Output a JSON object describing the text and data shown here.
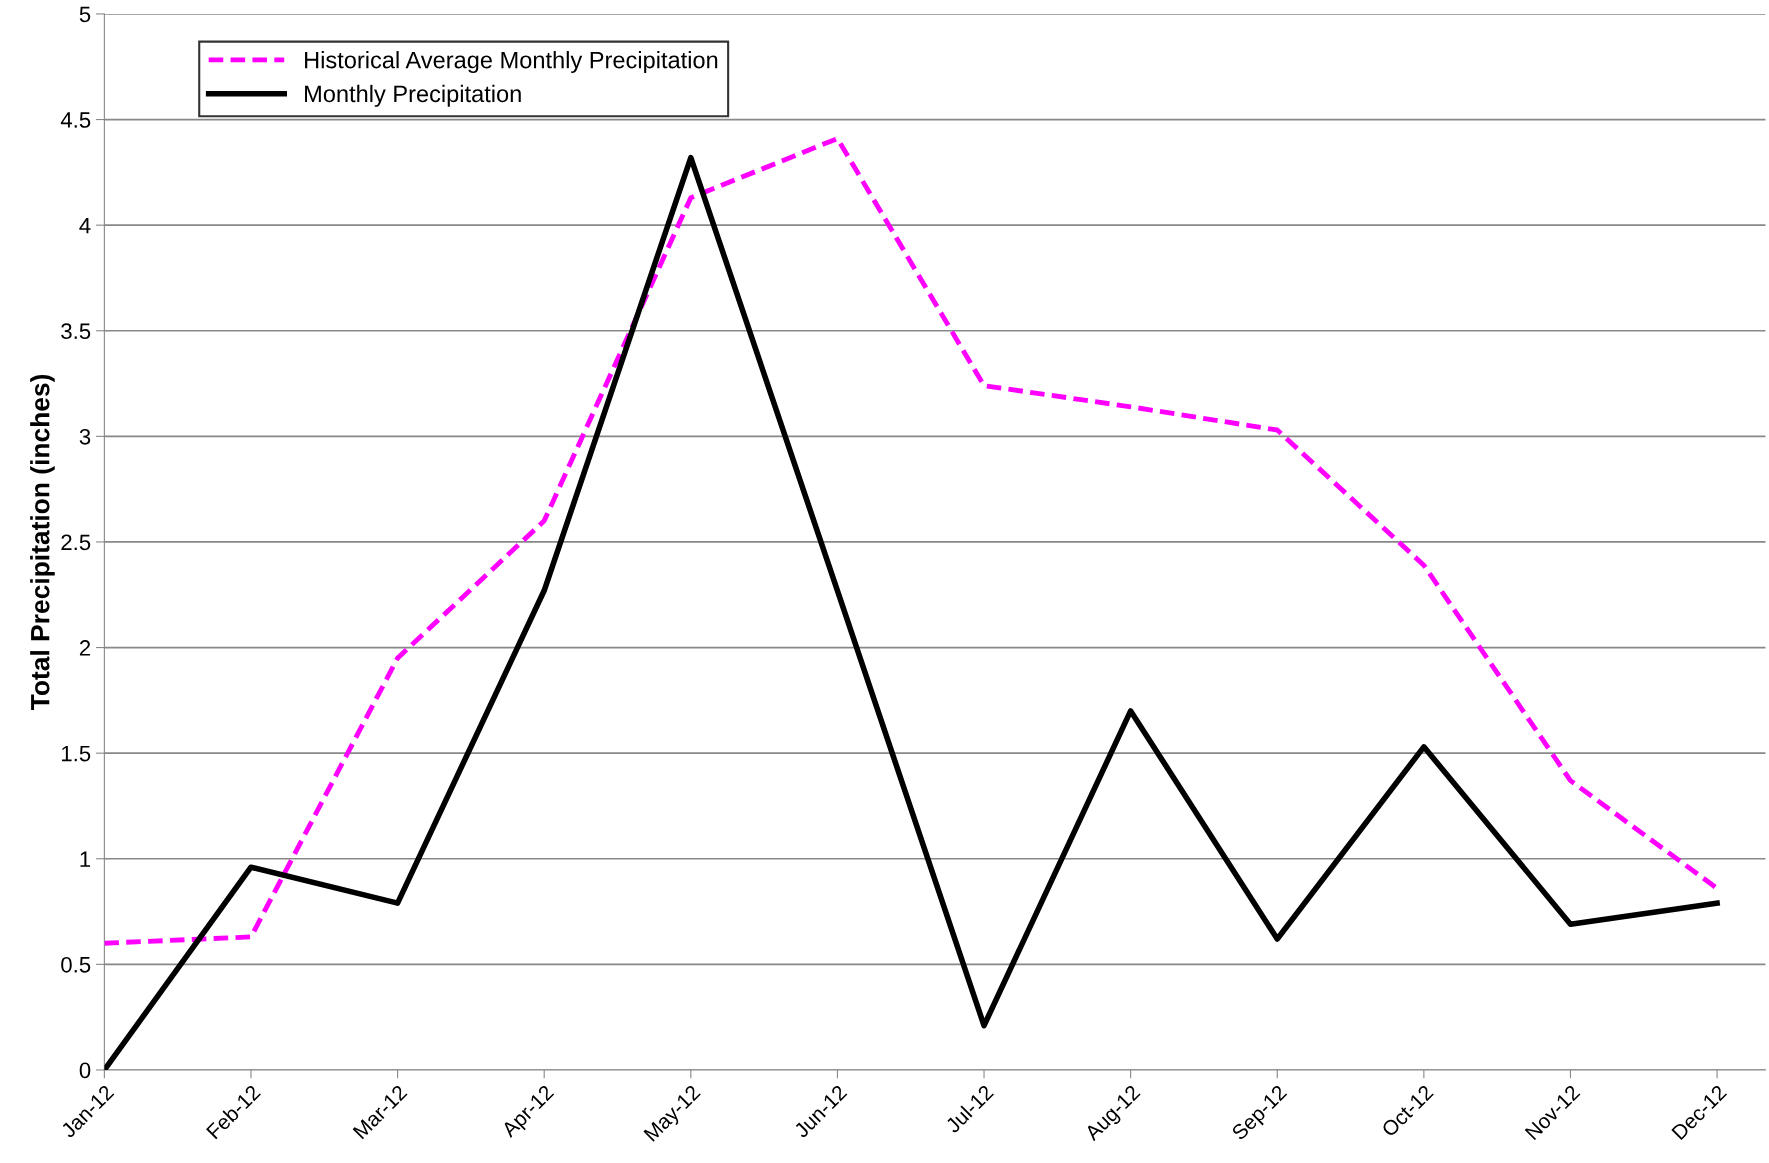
{
  "chart_data": {
    "type": "line",
    "ylabel": "Total Precipitation (inches)",
    "categories": [
      "Jan-12",
      "Feb-12",
      "Mar-12",
      "Apr-12",
      "May-12",
      "Jun-12",
      "Jul-12",
      "Aug-12",
      "Sep-12",
      "Oct-12",
      "Nov-12",
      "Dec-12"
    ],
    "series": [
      {
        "name": "Historical Average Monthly Precipitation",
        "color": "#ff00ff",
        "line_style": "dashed",
        "values": [
          0.6,
          0.63,
          1.95,
          2.6,
          4.13,
          4.41,
          3.24,
          3.14,
          3.03,
          2.39,
          1.37,
          0.86
        ]
      },
      {
        "name": "Monthly Precipitation",
        "color": "#000000",
        "line_style": "solid",
        "values": [
          0,
          0.96,
          0.79,
          2.27,
          4.32,
          2.27,
          0.21,
          1.7,
          0.62,
          1.53,
          0.69,
          0.79
        ]
      }
    ],
    "ylim": [
      0,
      5
    ],
    "yticks": [
      0,
      0.5,
      1,
      1.5,
      2,
      2.5,
      3,
      3.5,
      4,
      4.5,
      5
    ],
    "grid": "y",
    "legend": "top left",
    "marker": "none"
  }
}
